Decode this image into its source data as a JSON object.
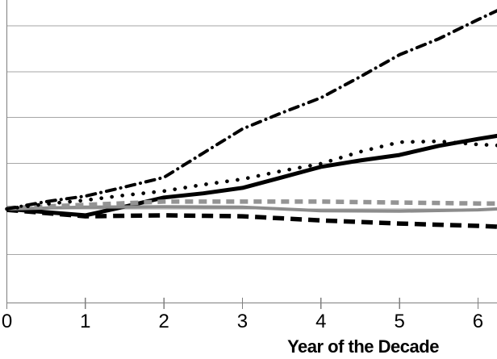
{
  "chart_data": {
    "type": "line",
    "title": "",
    "xlabel": "Year of the Decade",
    "ylabel": "",
    "x_tick_labels": [
      "0",
      "1",
      "2",
      "3",
      "4",
      "5",
      "6"
    ],
    "x_range_visible": [
      0,
      6.25
    ],
    "legend_visible": false,
    "y_axis_labels_visible": false,
    "y_unit": "gridline spacings relative to the common starting gridline (y-axis tick labels are cropped out of view)",
    "y_gridlines_units": [
      -1,
      0,
      1,
      2,
      3,
      4
    ],
    "grid": "horizontal gridlines on",
    "series": [
      {
        "name": "solid-black",
        "style": "solid-black",
        "color": "#000000",
        "points": [
          [
            0,
            0
          ],
          [
            0.5,
            -0.07
          ],
          [
            1,
            -0.14
          ],
          [
            1.5,
            0.05
          ],
          [
            2,
            0.25
          ],
          [
            2.5,
            0.34
          ],
          [
            3,
            0.46
          ],
          [
            3.5,
            0.69
          ],
          [
            4,
            0.92
          ],
          [
            4.5,
            1.06
          ],
          [
            5,
            1.18
          ],
          [
            5.5,
            1.38
          ],
          [
            6,
            1.53
          ],
          [
            6.25,
            1.6
          ]
        ]
      },
      {
        "name": "dashed-black",
        "style": "dashed-black",
        "color": "#000000",
        "points": [
          [
            0,
            -0.02
          ],
          [
            1,
            -0.16
          ],
          [
            2,
            -0.14
          ],
          [
            3,
            -0.16
          ],
          [
            4,
            -0.25
          ],
          [
            5,
            -0.32
          ],
          [
            6,
            -0.37
          ],
          [
            6.25,
            -0.39
          ]
        ]
      },
      {
        "name": "solid-gray",
        "style": "solid-gray",
        "color": "#8c8c8c",
        "points": [
          [
            0,
            0
          ],
          [
            1,
            0.04
          ],
          [
            2,
            0.05
          ],
          [
            3,
            0.04
          ],
          [
            4,
            -0.04
          ],
          [
            5,
            -0.05
          ],
          [
            6,
            -0.02
          ],
          [
            6.25,
            0
          ]
        ]
      },
      {
        "name": "dashed-gray",
        "style": "dashed-gray",
        "color": "#949494",
        "points": [
          [
            0,
            0.02
          ],
          [
            1,
            0.09
          ],
          [
            2,
            0.16
          ],
          [
            3,
            0.16
          ],
          [
            4,
            0.16
          ],
          [
            5,
            0.14
          ],
          [
            6,
            0.12
          ],
          [
            6.25,
            0.12
          ]
        ]
      },
      {
        "name": "dotted-black",
        "style": "dotted-black",
        "color": "#000000",
        "points": [
          [
            0,
            0
          ],
          [
            0.5,
            0.11
          ],
          [
            1,
            0.19
          ],
          [
            1.5,
            0.3
          ],
          [
            2,
            0.39
          ],
          [
            2.5,
            0.53
          ],
          [
            3,
            0.65
          ],
          [
            3.5,
            0.83
          ],
          [
            4,
            0.99
          ],
          [
            4.5,
            1.25
          ],
          [
            5,
            1.46
          ],
          [
            5.5,
            1.48
          ],
          [
            6,
            1.41
          ],
          [
            6.25,
            1.39
          ]
        ]
      },
      {
        "name": "dash-dot-black",
        "style": "dash-dot-black",
        "color": "#000000",
        "points": [
          [
            0,
            0
          ],
          [
            0.5,
            0.16
          ],
          [
            1,
            0.28
          ],
          [
            1.5,
            0.48
          ],
          [
            2,
            0.69
          ],
          [
            2.5,
            1.22
          ],
          [
            3,
            1.75
          ],
          [
            3.5,
            2.1
          ],
          [
            4,
            2.43
          ],
          [
            4.5,
            2.89
          ],
          [
            5,
            3.37
          ],
          [
            5.5,
            3.72
          ],
          [
            6,
            4.14
          ],
          [
            6.25,
            4.34
          ]
        ]
      }
    ]
  },
  "colors": {
    "background": "#ffffff",
    "gridline": "#a6a6a6",
    "axis": "#7f7f7f",
    "text": "#000000",
    "series_black": "#000000",
    "series_gray_solid": "#8c8c8c",
    "series_gray_dashed": "#949494"
  }
}
